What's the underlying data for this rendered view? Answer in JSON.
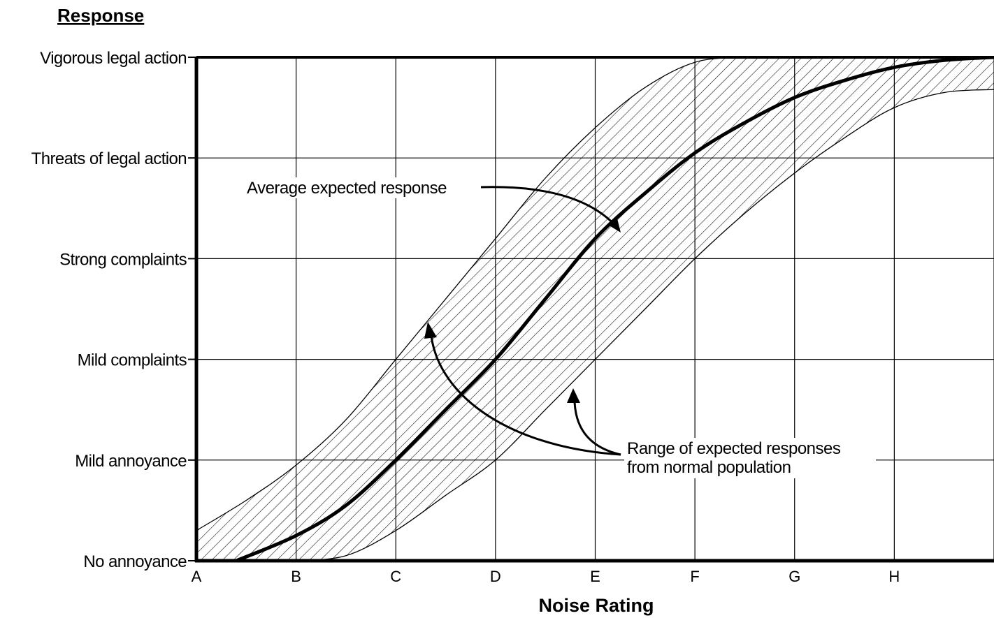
{
  "chart_data": {
    "type": "line",
    "ylabel": "Response",
    "xlabel": "Noise Rating",
    "x_categories": [
      "A",
      "B",
      "C",
      "D",
      "E",
      "F",
      "G",
      "H",
      ""
    ],
    "y_categories": [
      "No annoyance",
      "Mild annoyance",
      "Mild complaints",
      "Strong complaints",
      "Threats of legal action",
      "Vigorous legal action"
    ],
    "xlim": [
      0,
      8
    ],
    "ylim": [
      0,
      5
    ],
    "grid": true,
    "series": [
      {
        "name": "Average expected response",
        "style": "thick-line",
        "points": [
          [
            0.4,
            0
          ],
          [
            1,
            0.25
          ],
          [
            1.5,
            0.55
          ],
          [
            2,
            1
          ],
          [
            2.5,
            1.5
          ],
          [
            3,
            2
          ],
          [
            3.5,
            2.6
          ],
          [
            4,
            3.2
          ],
          [
            4.5,
            3.65
          ],
          [
            5,
            4.05
          ],
          [
            5.5,
            4.35
          ],
          [
            6,
            4.6
          ],
          [
            6.5,
            4.77
          ],
          [
            7,
            4.9
          ],
          [
            7.5,
            4.97
          ],
          [
            8,
            5
          ]
        ]
      },
      {
        "name": "Range of expected responses from normal population",
        "style": "hatched-band",
        "upper": [
          [
            0,
            0.3
          ],
          [
            0.5,
            0.6
          ],
          [
            1,
            0.95
          ],
          [
            1.5,
            1.4
          ],
          [
            2,
            2
          ],
          [
            2.5,
            2.6
          ],
          [
            3,
            3.2
          ],
          [
            3.5,
            3.8
          ],
          [
            4,
            4.3
          ],
          [
            4.5,
            4.7
          ],
          [
            5,
            4.95
          ],
          [
            5.5,
            5
          ],
          [
            6,
            5
          ],
          [
            8,
            5
          ]
        ],
        "lower": [
          [
            1,
            0
          ],
          [
            1.5,
            0.05
          ],
          [
            2,
            0.3
          ],
          [
            2.5,
            0.65
          ],
          [
            3,
            1
          ],
          [
            3.5,
            1.5
          ],
          [
            4,
            2
          ],
          [
            4.5,
            2.5
          ],
          [
            5,
            3
          ],
          [
            5.5,
            3.45
          ],
          [
            6,
            3.85
          ],
          [
            6.5,
            4.2
          ],
          [
            7,
            4.5
          ],
          [
            7.5,
            4.65
          ],
          [
            8,
            4.68
          ]
        ]
      }
    ],
    "annotations": [
      {
        "text": "Average expected response"
      },
      {
        "text": "Range of expected responses",
        "text2": "from normal population"
      }
    ]
  }
}
